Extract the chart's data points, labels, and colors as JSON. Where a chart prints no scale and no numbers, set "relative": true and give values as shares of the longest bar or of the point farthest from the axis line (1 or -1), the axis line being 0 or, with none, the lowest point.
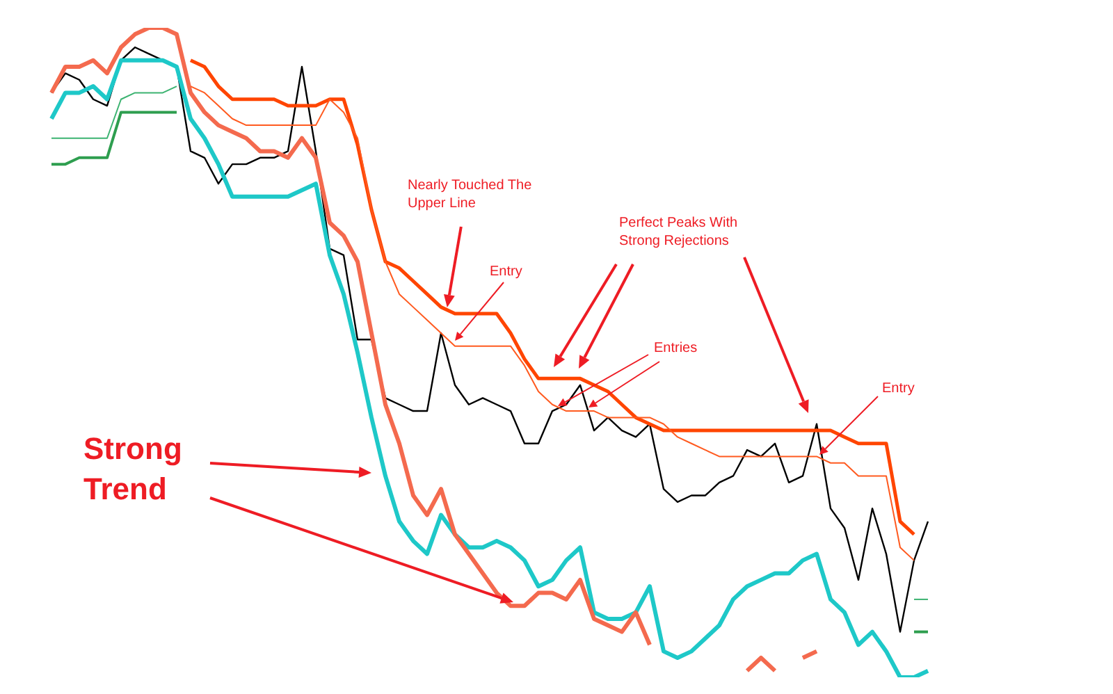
{
  "chart_data": {
    "type": "line",
    "relative": true,
    "grid": false,
    "legend": false,
    "marker": "none",
    "line_style": "solid",
    "categories": [
      null,
      null,
      null,
      null,
      null,
      null,
      null,
      null,
      null,
      null,
      null,
      null,
      null,
      null,
      null,
      null,
      null,
      null,
      null,
      null,
      null,
      null,
      null,
      null,
      null,
      null,
      null,
      null,
      null,
      null,
      null,
      null,
      null,
      null,
      null,
      null,
      null,
      null,
      null,
      null,
      null,
      null,
      null,
      null,
      null,
      null,
      null,
      null,
      null,
      null,
      null,
      null,
      null,
      null,
      null,
      null,
      null,
      null,
      null,
      null,
      null,
      null,
      null,
      null
    ],
    "annotations": [
      "Nearly Touched The Upper Line",
      "Entry",
      "Perfect Peaks With Strong Rejections",
      "Entries",
      "Entry",
      "Strong Trend"
    ],
    "series": [
      {
        "color": "#3cb371",
        "values": [
          0.83,
          0.83,
          0.83,
          0.83,
          0.83,
          0.89,
          0.9,
          0.9,
          0.9,
          0.91,
          null,
          null,
          null,
          null,
          null,
          null,
          null,
          null,
          null,
          null,
          null,
          null,
          null,
          null,
          null,
          null,
          null,
          null,
          null,
          null,
          null,
          null,
          null,
          null,
          null,
          null,
          null,
          null,
          null,
          null,
          null,
          null,
          null,
          null,
          null,
          null,
          null,
          null,
          null,
          null,
          null,
          null,
          null,
          null,
          null,
          null,
          null,
          null,
          null,
          null,
          null,
          null,
          null,
          null
        ]
      },
      {
        "color": "#3cb371",
        "values": [
          null,
          null,
          null,
          null,
          null,
          null,
          null,
          null,
          null,
          null,
          null,
          null,
          null,
          null,
          null,
          null,
          null,
          null,
          null,
          null,
          null,
          null,
          null,
          null,
          null,
          null,
          null,
          null,
          null,
          null,
          null,
          null,
          null,
          null,
          null,
          null,
          null,
          null,
          null,
          null,
          null,
          null,
          null,
          null,
          null,
          null,
          null,
          null,
          null,
          null,
          null,
          null,
          null,
          null,
          null,
          null,
          null,
          null,
          null,
          null,
          null,
          null,
          0.12,
          0.12
        ]
      },
      {
        "color": "#2e9e4f",
        "values": [
          0.79,
          0.79,
          0.8,
          0.8,
          0.8,
          0.87,
          0.87,
          0.87,
          0.87,
          0.87,
          null,
          null,
          null,
          null,
          null,
          null,
          null,
          null,
          null,
          null,
          null,
          null,
          null,
          null,
          null,
          null,
          null,
          null,
          null,
          null,
          null,
          null,
          null,
          null,
          null,
          null,
          null,
          null,
          null,
          null,
          null,
          null,
          null,
          null,
          null,
          null,
          null,
          null,
          null,
          null,
          null,
          null,
          null,
          null,
          null,
          null,
          null,
          null,
          null,
          null,
          null,
          null,
          null,
          null
        ]
      },
      {
        "color": "#2e9e4f",
        "values": [
          null,
          null,
          null,
          null,
          null,
          null,
          null,
          null,
          null,
          null,
          null,
          null,
          null,
          null,
          null,
          null,
          null,
          null,
          null,
          null,
          null,
          null,
          null,
          null,
          null,
          null,
          null,
          null,
          null,
          null,
          null,
          null,
          null,
          null,
          null,
          null,
          null,
          null,
          null,
          null,
          null,
          null,
          null,
          null,
          null,
          null,
          null,
          null,
          null,
          null,
          null,
          null,
          null,
          null,
          null,
          null,
          null,
          null,
          null,
          null,
          null,
          null,
          0.07,
          0.07
        ]
      },
      {
        "color": "#ff5a1f",
        "values": [
          null,
          null,
          null,
          null,
          null,
          null,
          null,
          null,
          null,
          null,
          0.91,
          0.9,
          0.88,
          0.86,
          0.85,
          0.85,
          0.85,
          0.85,
          0.85,
          0.85,
          0.89,
          0.87,
          0.83,
          0.72,
          0.64,
          0.59,
          0.57,
          0.55,
          0.53,
          0.51,
          0.51,
          0.51,
          0.51,
          0.51,
          0.48,
          0.44,
          0.42,
          0.41,
          0.41,
          0.41,
          0.4,
          0.4,
          0.4,
          0.4,
          0.39,
          0.37,
          0.36,
          0.35,
          0.34,
          0.34,
          0.34,
          0.34,
          0.34,
          0.34,
          0.34,
          0.34,
          0.33,
          0.33,
          0.31,
          0.31,
          0.31,
          0.2,
          0.18,
          null
        ]
      },
      {
        "color": "#ff4500",
        "values": [
          null,
          null,
          null,
          null,
          null,
          null,
          null,
          null,
          null,
          null,
          0.95,
          0.94,
          0.91,
          0.89,
          0.89,
          0.89,
          0.89,
          0.88,
          0.88,
          0.88,
          0.89,
          0.89,
          0.82,
          0.72,
          0.64,
          0.63,
          0.61,
          0.59,
          0.57,
          0.56,
          0.56,
          0.56,
          0.56,
          0.53,
          0.49,
          0.46,
          0.46,
          0.46,
          0.46,
          0.45,
          0.44,
          0.42,
          0.4,
          0.39,
          0.38,
          0.38,
          0.38,
          0.38,
          0.38,
          0.38,
          0.38,
          0.38,
          0.38,
          0.38,
          0.38,
          0.38,
          0.38,
          0.37,
          0.36,
          0.36,
          0.36,
          0.24,
          0.22,
          null
        ]
      },
      {
        "color": "#f46a4e",
        "values": [
          0.9,
          0.94,
          0.94,
          0.95,
          0.93,
          0.97,
          0.99,
          1.0,
          1.0,
          0.99,
          0.9,
          0.87,
          0.85,
          0.84,
          0.83,
          0.81,
          0.81,
          0.8,
          0.83,
          0.8,
          0.7,
          0.68,
          0.64,
          0.53,
          0.42,
          0.36,
          0.28,
          0.25,
          0.29,
          0.22,
          0.19,
          0.16,
          0.13,
          0.11,
          0.11,
          0.13,
          0.13,
          0.12,
          0.15,
          0.09,
          0.08,
          0.07,
          0.1,
          0.05,
          null,
          null,
          null,
          null,
          null,
          null,
          null,
          null,
          null,
          null,
          null,
          null,
          null,
          null,
          null,
          null,
          null,
          null,
          null,
          null
        ]
      },
      {
        "color": "#f46a4e",
        "values": [
          null,
          null,
          null,
          null,
          null,
          null,
          null,
          null,
          null,
          null,
          null,
          null,
          null,
          null,
          null,
          null,
          null,
          null,
          null,
          null,
          null,
          null,
          null,
          null,
          null,
          null,
          null,
          null,
          null,
          null,
          null,
          null,
          null,
          null,
          null,
          null,
          null,
          null,
          null,
          null,
          null,
          null,
          null,
          null,
          null,
          null,
          null,
          null,
          null,
          null,
          0.01,
          0.03,
          0.01,
          null,
          null,
          null,
          null,
          null,
          null,
          null,
          null,
          null,
          null,
          null
        ]
      },
      {
        "color": "#f46a4e",
        "values": [
          null,
          null,
          null,
          null,
          null,
          null,
          null,
          null,
          null,
          null,
          null,
          null,
          null,
          null,
          null,
          null,
          null,
          null,
          null,
          null,
          null,
          null,
          null,
          null,
          null,
          null,
          null,
          null,
          null,
          null,
          null,
          null,
          null,
          null,
          null,
          null,
          null,
          null,
          null,
          null,
          null,
          null,
          null,
          null,
          null,
          null,
          null,
          null,
          null,
          null,
          null,
          null,
          null,
          null,
          0.03,
          0.04,
          null,
          null,
          null,
          null,
          null,
          null,
          null,
          null
        ]
      },
      {
        "color": "#1ec8c8",
        "values": [
          0.86,
          0.9,
          0.9,
          0.91,
          0.89,
          0.95,
          0.95,
          0.95,
          0.95,
          0.94,
          0.86,
          0.83,
          0.79,
          0.74,
          0.74,
          0.74,
          0.74,
          0.74,
          0.75,
          0.76,
          0.65,
          0.59,
          0.5,
          0.4,
          0.31,
          0.24,
          0.21,
          0.19,
          0.25,
          0.22,
          0.2,
          0.2,
          0.21,
          0.2,
          0.18,
          0.14,
          0.15,
          0.18,
          0.2,
          0.1,
          0.09,
          0.09,
          0.1,
          0.14,
          0.04,
          0.03,
          0.04,
          0.06,
          0.08,
          0.12,
          0.14,
          0.15,
          0.16,
          0.16,
          0.18,
          0.19,
          0.12,
          0.1,
          0.05,
          0.07,
          0.04,
          0.0,
          0.0,
          0.01
        ]
      },
      {
        "color": "#000000",
        "values": [
          0.9,
          0.93,
          0.92,
          0.89,
          0.88,
          0.95,
          0.97,
          0.96,
          0.95,
          0.94,
          0.81,
          0.8,
          0.76,
          0.79,
          0.79,
          0.8,
          0.8,
          0.81,
          0.94,
          0.81,
          0.66,
          0.65,
          0.52,
          0.52,
          0.43,
          0.42,
          0.41,
          0.41,
          0.53,
          0.45,
          0.42,
          0.43,
          0.42,
          0.41,
          0.36,
          0.36,
          0.41,
          0.42,
          0.45,
          0.38,
          0.4,
          0.38,
          0.37,
          0.39,
          0.29,
          0.27,
          0.28,
          0.28,
          0.3,
          0.31,
          0.35,
          0.34,
          0.36,
          0.3,
          0.31,
          0.39,
          0.26,
          0.23,
          0.15,
          0.26,
          0.19,
          0.07,
          0.18,
          0.24
        ]
      }
    ]
  }
}
